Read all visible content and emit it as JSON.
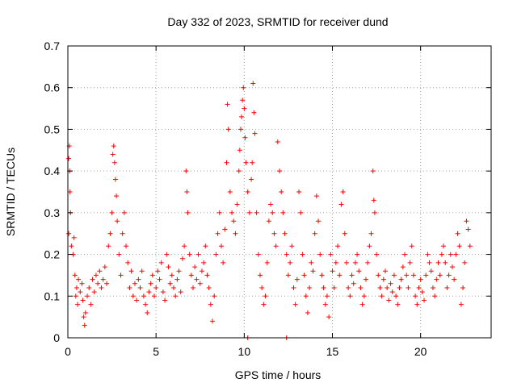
{
  "chart_data": {
    "type": "scatter",
    "title": "Day 332 of 2023, SRMTID for receiver dund",
    "xlabel": "GPS time / hours",
    "ylabel": "SRMTID / TECUs",
    "xlim": [
      0,
      24
    ],
    "ylim": [
      0,
      0.7
    ],
    "x_ticks": [
      0,
      5,
      10,
      15,
      20
    ],
    "x_tick_labels": [
      "0",
      "5",
      "10",
      "15",
      "20"
    ],
    "y_ticks": [
      0,
      0.1,
      0.2,
      0.3,
      0.4,
      0.5,
      0.6,
      0.7
    ],
    "y_tick_labels": [
      "0",
      "0.1",
      "0.2",
      "0.3",
      "0.4",
      "0.5",
      "0.6",
      "0.7"
    ],
    "grid": true,
    "marker": "+",
    "color": "#ff0000",
    "series": [
      {
        "name": "SRMTID",
        "points": [
          [
            0.05,
            0.43
          ],
          [
            0.08,
            0.46
          ],
          [
            0.1,
            0.4
          ],
          [
            0.12,
            0.35
          ],
          [
            0.15,
            0.3
          ],
          [
            0.05,
            0.25
          ],
          [
            0.2,
            0.22
          ],
          [
            0.3,
            0.2
          ],
          [
            0.35,
            0.24
          ],
          [
            0.4,
            0.15
          ],
          [
            0.45,
            0.1
          ],
          [
            0.5,
            0.12
          ],
          [
            0.55,
            0.08
          ],
          [
            0.6,
            0.14
          ],
          [
            0.7,
            0.11
          ],
          [
            0.8,
            0.13
          ],
          [
            0.85,
            0.09
          ],
          [
            0.9,
            0.05
          ],
          [
            0.95,
            0.03
          ],
          [
            1.0,
            0.06
          ],
          [
            1.1,
            0.1
          ],
          [
            1.2,
            0.12
          ],
          [
            1.3,
            0.08
          ],
          [
            1.4,
            0.14
          ],
          [
            1.5,
            0.11
          ],
          [
            1.6,
            0.15
          ],
          [
            1.7,
            0.13
          ],
          [
            1.8,
            0.16
          ],
          [
            1.9,
            0.12
          ],
          [
            2.0,
            0.14
          ],
          [
            2.1,
            0.17
          ],
          [
            2.2,
            0.13
          ],
          [
            2.3,
            0.22
          ],
          [
            2.4,
            0.25
          ],
          [
            2.5,
            0.3
          ],
          [
            2.55,
            0.44
          ],
          [
            2.6,
            0.46
          ],
          [
            2.65,
            0.42
          ],
          [
            2.7,
            0.38
          ],
          [
            2.75,
            0.34
          ],
          [
            2.8,
            0.28
          ],
          [
            2.9,
            0.2
          ],
          [
            3.0,
            0.15
          ],
          [
            3.1,
            0.25
          ],
          [
            3.2,
            0.3
          ],
          [
            3.3,
            0.22
          ],
          [
            3.4,
            0.18
          ],
          [
            3.5,
            0.12
          ],
          [
            3.6,
            0.16
          ],
          [
            3.7,
            0.1
          ],
          [
            3.8,
            0.13
          ],
          [
            3.9,
            0.09
          ],
          [
            4.0,
            0.14
          ],
          [
            4.1,
            0.12
          ],
          [
            4.2,
            0.16
          ],
          [
            4.3,
            0.1
          ],
          [
            4.4,
            0.08
          ],
          [
            4.5,
            0.06
          ],
          [
            4.6,
            0.11
          ],
          [
            4.7,
            0.13
          ],
          [
            4.8,
            0.15
          ],
          [
            4.9,
            0.1
          ],
          [
            5.0,
            0.12
          ],
          [
            5.1,
            0.16
          ],
          [
            5.2,
            0.14
          ],
          [
            5.3,
            0.18
          ],
          [
            5.4,
            0.11
          ],
          [
            5.5,
            0.09
          ],
          [
            5.6,
            0.2
          ],
          [
            5.7,
            0.17
          ],
          [
            5.8,
            0.13
          ],
          [
            5.9,
            0.15
          ],
          [
            6.0,
            0.12
          ],
          [
            6.1,
            0.1
          ],
          [
            6.2,
            0.14
          ],
          [
            6.3,
            0.16
          ],
          [
            6.4,
            0.11
          ],
          [
            6.5,
            0.19
          ],
          [
            6.6,
            0.22
          ],
          [
            6.7,
            0.4
          ],
          [
            6.75,
            0.35
          ],
          [
            6.8,
            0.3
          ],
          [
            6.9,
            0.2
          ],
          [
            7.0,
            0.15
          ],
          [
            7.1,
            0.12
          ],
          [
            7.2,
            0.17
          ],
          [
            7.3,
            0.14
          ],
          [
            7.4,
            0.2
          ],
          [
            7.5,
            0.13
          ],
          [
            7.6,
            0.16
          ],
          [
            7.7,
            0.18
          ],
          [
            7.8,
            0.22
          ],
          [
            7.9,
            0.15
          ],
          [
            8.0,
            0.12
          ],
          [
            8.1,
            0.08
          ],
          [
            8.2,
            0.04
          ],
          [
            8.3,
            0.1
          ],
          [
            8.4,
            0.2
          ],
          [
            8.5,
            0.25
          ],
          [
            8.6,
            0.3
          ],
          [
            8.7,
            0.22
          ],
          [
            8.8,
            0.18
          ],
          [
            8.9,
            0.26
          ],
          [
            9.0,
            0.42
          ],
          [
            9.05,
            0.56
          ],
          [
            9.1,
            0.5
          ],
          [
            9.2,
            0.35
          ],
          [
            9.3,
            0.3
          ],
          [
            9.4,
            0.28
          ],
          [
            9.5,
            0.25
          ],
          [
            9.6,
            0.32
          ],
          [
            9.7,
            0.4
          ],
          [
            9.75,
            0.45
          ],
          [
            9.8,
            0.5
          ],
          [
            9.85,
            0.53
          ],
          [
            9.9,
            0.57
          ],
          [
            9.95,
            0.6
          ],
          [
            10.0,
            0.55
          ],
          [
            10.05,
            0.48
          ],
          [
            10.1,
            0.42
          ],
          [
            10.2,
            0.35
          ],
          [
            10.3,
            0.3
          ],
          [
            10.4,
            0.38
          ],
          [
            10.45,
            0.42
          ],
          [
            10.5,
            0.61
          ],
          [
            10.55,
            0.54
          ],
          [
            10.6,
            0.49
          ],
          [
            10.7,
            0.3
          ],
          [
            10.8,
            0.2
          ],
          [
            10.9,
            0.15
          ],
          [
            11.0,
            0.12
          ],
          [
            11.1,
            0.08
          ],
          [
            11.2,
            0.1
          ],
          [
            11.3,
            0.18
          ],
          [
            11.4,
            0.28
          ],
          [
            11.5,
            0.32
          ],
          [
            11.6,
            0.3
          ],
          [
            11.7,
            0.25
          ],
          [
            11.8,
            0.22
          ],
          [
            11.9,
            0.47
          ],
          [
            12.0,
            0.4
          ],
          [
            12.1,
            0.35
          ],
          [
            12.2,
            0.3
          ],
          [
            12.3,
            0.25
          ],
          [
            12.4,
            0.2
          ],
          [
            12.5,
            0.15
          ],
          [
            12.6,
            0.18
          ],
          [
            12.7,
            0.22
          ],
          [
            12.8,
            0.12
          ],
          [
            12.9,
            0.08
          ],
          [
            13.0,
            0.14
          ],
          [
            13.1,
            0.35
          ],
          [
            13.2,
            0.3
          ],
          [
            13.3,
            0.2
          ],
          [
            13.4,
            0.15
          ],
          [
            13.5,
            0.1
          ],
          [
            13.6,
            0.06
          ],
          [
            13.7,
            0.12
          ],
          [
            13.8,
            0.18
          ],
          [
            13.9,
            0.16
          ],
          [
            14.0,
            0.25
          ],
          [
            14.1,
            0.34
          ],
          [
            14.2,
            0.28
          ],
          [
            14.3,
            0.2
          ],
          [
            14.4,
            0.15
          ],
          [
            14.5,
            0.12
          ],
          [
            14.6,
            0.08
          ],
          [
            14.7,
            0.1
          ],
          [
            14.8,
            0.05
          ],
          [
            14.9,
            0.2
          ],
          [
            15.0,
            0.16
          ],
          [
            15.1,
            0.12
          ],
          [
            15.2,
            0.18
          ],
          [
            15.3,
            0.22
          ],
          [
            15.4,
            0.15
          ],
          [
            15.5,
            0.32
          ],
          [
            15.6,
            0.35
          ],
          [
            15.7,
            0.25
          ],
          [
            15.8,
            0.18
          ],
          [
            15.9,
            0.12
          ],
          [
            16.0,
            0.1
          ],
          [
            16.1,
            0.15
          ],
          [
            16.2,
            0.13
          ],
          [
            16.3,
            0.18
          ],
          [
            16.4,
            0.2
          ],
          [
            16.5,
            0.16
          ],
          [
            16.6,
            0.12
          ],
          [
            16.7,
            0.08
          ],
          [
            16.8,
            0.1
          ],
          [
            16.9,
            0.14
          ],
          [
            17.0,
            0.18
          ],
          [
            17.1,
            0.22
          ],
          [
            17.2,
            0.25
          ],
          [
            17.3,
            0.4
          ],
          [
            17.35,
            0.33
          ],
          [
            17.4,
            0.3
          ],
          [
            17.5,
            0.2
          ],
          [
            17.6,
            0.15
          ],
          [
            17.7,
            0.12
          ],
          [
            17.8,
            0.1
          ],
          [
            17.9,
            0.14
          ],
          [
            18.0,
            0.16
          ],
          [
            18.1,
            0.12
          ],
          [
            18.2,
            0.09
          ],
          [
            18.3,
            0.13
          ],
          [
            18.4,
            0.11
          ],
          [
            18.5,
            0.15
          ],
          [
            18.6,
            0.1
          ],
          [
            18.7,
            0.08
          ],
          [
            18.8,
            0.12
          ],
          [
            18.9,
            0.14
          ],
          [
            19.0,
            0.17
          ],
          [
            19.1,
            0.2
          ],
          [
            19.2,
            0.15
          ],
          [
            19.3,
            0.12
          ],
          [
            19.4,
            0.18
          ],
          [
            19.5,
            0.22
          ],
          [
            19.6,
            0.15
          ],
          [
            19.7,
            0.1
          ],
          [
            19.8,
            0.08
          ],
          [
            19.9,
            0.12
          ],
          [
            20.0,
            0.14
          ],
          [
            20.1,
            0.11
          ],
          [
            20.2,
            0.09
          ],
          [
            20.3,
            0.15
          ],
          [
            20.4,
            0.2
          ],
          [
            20.5,
            0.18
          ],
          [
            20.6,
            0.16
          ],
          [
            20.7,
            0.12
          ],
          [
            20.8,
            0.1
          ],
          [
            20.9,
            0.14
          ],
          [
            21.0,
            0.18
          ],
          [
            21.1,
            0.15
          ],
          [
            21.2,
            0.2
          ],
          [
            21.3,
            0.22
          ],
          [
            21.4,
            0.18
          ],
          [
            21.5,
            0.12
          ],
          [
            21.6,
            0.15
          ],
          [
            21.7,
            0.2
          ],
          [
            21.8,
            0.17
          ],
          [
            21.9,
            0.14
          ],
          [
            22.0,
            0.2
          ],
          [
            22.1,
            0.25
          ],
          [
            22.2,
            0.22
          ],
          [
            22.3,
            0.08
          ],
          [
            22.4,
            0.12
          ],
          [
            22.5,
            0.18
          ],
          [
            22.6,
            0.28
          ],
          [
            22.7,
            0.26
          ],
          [
            22.8,
            0.22
          ],
          [
            10.2,
            0.0
          ],
          [
            12.4,
            0.0
          ]
        ]
      }
    ]
  }
}
